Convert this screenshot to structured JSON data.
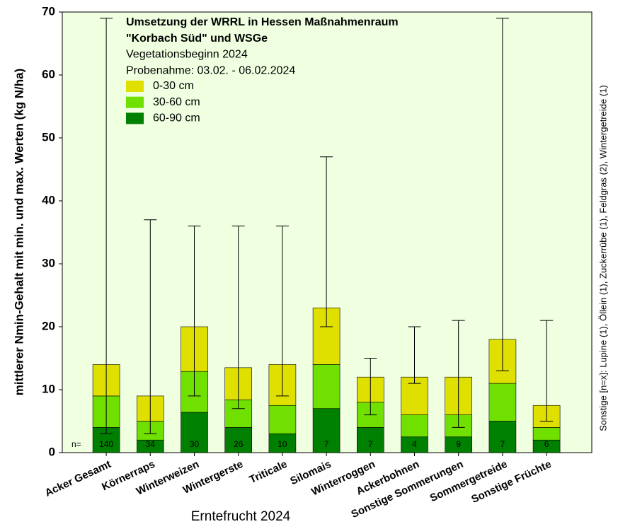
{
  "chart_data": {
    "type": "stacked_bar",
    "title_lines": [
      "Umsetzung der WRRL in Hessen Maßnahmenraum",
      "\"Korbach Süd\" und WSGe",
      "Vegetationsbeginn 2024",
      "Probenahme: 03.02. - 06.02.2024"
    ],
    "y_label": "mittlerer Nmin-Gehalt mit min. und max. Werten (kg N/ha)",
    "x_label": "Erntefrucht 2024",
    "side_note": "Sonstige [n=x]: Lupine (1), Öllein (1), Zuckerrübe (1), Feldgras (2), Wintergetreide (1)",
    "categories": [
      "Acker Gesamt",
      "Körnerraps",
      "Winterweizen",
      "Wintergerste",
      "Triticale",
      "Silomais",
      "Winterroggen",
      "Ackerbohnen",
      "Sonstige Sommerungen",
      "Sommergetreide",
      "Sonstige Früchte"
    ],
    "series": [
      {
        "name": "0-30 cm",
        "color": "#e0e000",
        "values": [
          5,
          4,
          7.1,
          5.1,
          6.5,
          9,
          4,
          6,
          6,
          7,
          3.5
        ]
      },
      {
        "name": "30-60 cm",
        "color": "#70e000",
        "values": [
          5,
          3,
          6.5,
          4.4,
          4.5,
          7,
          4,
          3.5,
          3.5,
          6,
          2
        ]
      },
      {
        "name": "60-90 cm",
        "color": "#008000",
        "values": [
          4,
          2,
          6.4,
          4,
          3,
          7,
          4,
          2.5,
          2.5,
          5,
          2
        ]
      }
    ],
    "min": [
      3,
      3,
      9,
      7,
      9,
      20,
      6,
      11,
      4,
      13,
      5
    ],
    "max": [
      69,
      37,
      36,
      36,
      36,
      47,
      15,
      20,
      21,
      69,
      21
    ],
    "n_label": "n=",
    "n": [
      140,
      34,
      30,
      26,
      10,
      7,
      7,
      4,
      9,
      7,
      6
    ],
    "ylim": [
      0,
      70
    ],
    "yticks": [
      0,
      10,
      20,
      30,
      40,
      50,
      60,
      70
    ],
    "background": "#f0ffe0"
  }
}
